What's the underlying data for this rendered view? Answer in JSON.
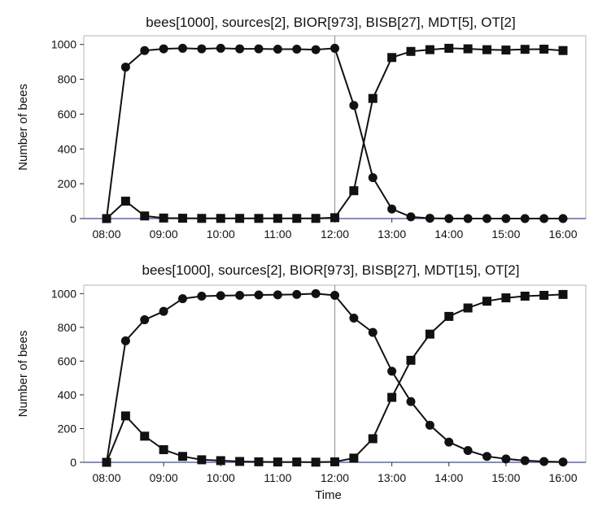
{
  "chart_data": [
    {
      "type": "line",
      "title": "bees[1000], sources[2], BIOR[973], BISB[27], MDT[5], OT[2]",
      "xlabel": "",
      "ylabel": "Number of bees",
      "x_ticks": [
        "08:00",
        "09:00",
        "10:00",
        "11:00",
        "12:00",
        "13:00",
        "14:00",
        "15:00",
        "16:00"
      ],
      "y_ticks": [
        0,
        200,
        400,
        600,
        800,
        1000
      ],
      "xlim": [
        "08:00",
        "16:00"
      ],
      "ylim": [
        0,
        1050
      ],
      "grid": false,
      "legend": "none",
      "vertical_marker": "12:00",
      "x": [
        "08:00",
        "08:20",
        "08:40",
        "09:00",
        "09:20",
        "09:40",
        "10:00",
        "10:20",
        "10:40",
        "11:00",
        "11:20",
        "11:40",
        "12:00",
        "12:20",
        "12:40",
        "13:00",
        "13:20",
        "13:40",
        "14:00",
        "14:20",
        "14:40",
        "15:00",
        "15:20",
        "15:40",
        "16:00"
      ],
      "series": [
        {
          "marker": "circle",
          "values": [
            0,
            870,
            965,
            975,
            978,
            975,
            978,
            975,
            975,
            973,
            973,
            970,
            978,
            650,
            235,
            55,
            10,
            2,
            0,
            0,
            0,
            0,
            0,
            0,
            0
          ]
        },
        {
          "marker": "square",
          "values": [
            0,
            100,
            15,
            3,
            2,
            1,
            1,
            1,
            1,
            1,
            1,
            1,
            5,
            160,
            690,
            925,
            960,
            970,
            978,
            975,
            970,
            968,
            972,
            973,
            965
          ]
        }
      ]
    },
    {
      "type": "line",
      "title": "bees[1000], sources[2], BIOR[973], BISB[27], MDT[15], OT[2]",
      "xlabel": "Time",
      "ylabel": "Number of bees",
      "x_ticks": [
        "08:00",
        "09:00",
        "10:00",
        "11:00",
        "12:00",
        "13:00",
        "14:00",
        "15:00",
        "16:00"
      ],
      "y_ticks": [
        0,
        200,
        400,
        600,
        800,
        1000
      ],
      "xlim": [
        "08:00",
        "16:00"
      ],
      "ylim": [
        0,
        1050
      ],
      "grid": false,
      "legend": "none",
      "vertical_marker": "12:00",
      "x": [
        "08:00",
        "08:20",
        "08:40",
        "09:00",
        "09:20",
        "09:40",
        "10:00",
        "10:20",
        "10:40",
        "11:00",
        "11:20",
        "11:40",
        "12:00",
        "12:20",
        "12:40",
        "13:00",
        "13:20",
        "13:40",
        "14:00",
        "14:20",
        "14:40",
        "15:00",
        "15:20",
        "15:40",
        "16:00"
      ],
      "series": [
        {
          "marker": "circle",
          "values": [
            0,
            720,
            845,
            895,
            970,
            985,
            988,
            990,
            992,
            993,
            995,
            1000,
            990,
            855,
            770,
            540,
            360,
            220,
            120,
            70,
            35,
            20,
            10,
            5,
            2
          ]
        },
        {
          "marker": "square",
          "values": [
            0,
            275,
            155,
            75,
            35,
            15,
            10,
            5,
            3,
            2,
            2,
            1,
            3,
            25,
            140,
            385,
            605,
            760,
            865,
            915,
            955,
            975,
            985,
            990,
            995
          ]
        }
      ]
    }
  ]
}
